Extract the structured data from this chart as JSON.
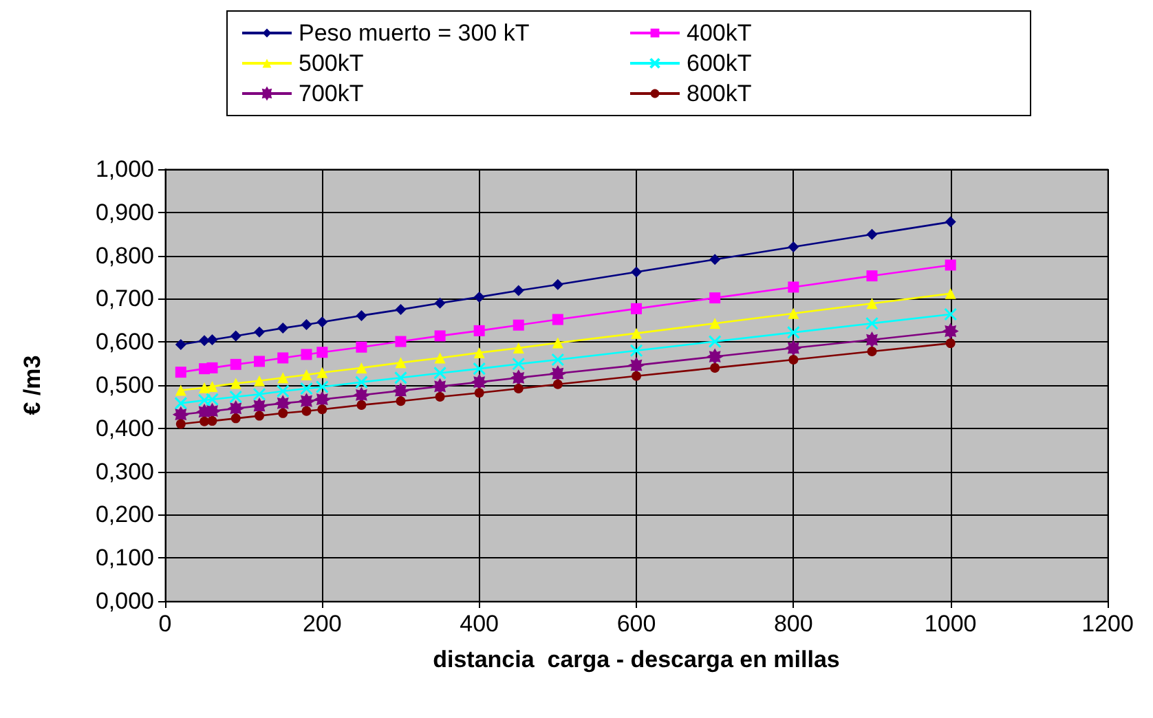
{
  "chart_data": {
    "type": "line",
    "xlabel": "distancia  carga - descarga en millas",
    "ylabel": "€ /m3",
    "x": [
      20,
      50,
      60,
      90,
      120,
      150,
      180,
      200,
      250,
      300,
      350,
      400,
      450,
      500,
      600,
      700,
      800,
      900,
      1000
    ],
    "series": [
      {
        "name": "Peso muerto = 300 kT",
        "color": "#000080",
        "marker": "diamond",
        "values": [
          0.594,
          0.603,
          0.605,
          0.614,
          0.623,
          0.632,
          0.64,
          0.646,
          0.661,
          0.675,
          0.69,
          0.704,
          0.719,
          0.733,
          0.762,
          0.791,
          0.82,
          0.849,
          0.878
        ]
      },
      {
        "name": "400kT",
        "color": "#ff00ff",
        "marker": "square",
        "values": [
          0.53,
          0.538,
          0.54,
          0.548,
          0.555,
          0.563,
          0.571,
          0.576,
          0.588,
          0.601,
          0.614,
          0.626,
          0.639,
          0.652,
          0.677,
          0.702,
          0.727,
          0.753,
          0.778
        ]
      },
      {
        "name": "500kT",
        "color": "#ffff00",
        "marker": "triangle",
        "values": [
          0.488,
          0.494,
          0.497,
          0.504,
          0.51,
          0.517,
          0.524,
          0.529,
          0.54,
          0.552,
          0.563,
          0.575,
          0.586,
          0.598,
          0.62,
          0.643,
          0.666,
          0.689,
          0.712
        ]
      },
      {
        "name": "600kT",
        "color": "#00ffff",
        "marker": "cross",
        "values": [
          0.458,
          0.465,
          0.467,
          0.473,
          0.479,
          0.486,
          0.492,
          0.496,
          0.507,
          0.517,
          0.528,
          0.538,
          0.549,
          0.559,
          0.58,
          0.601,
          0.622,
          0.643,
          0.664
        ]
      },
      {
        "name": "700kT",
        "color": "#800080",
        "marker": "star",
        "values": [
          0.432,
          0.438,
          0.44,
          0.446,
          0.452,
          0.458,
          0.463,
          0.467,
          0.477,
          0.487,
          0.497,
          0.507,
          0.517,
          0.527,
          0.546,
          0.566,
          0.586,
          0.605,
          0.625
        ]
      },
      {
        "name": "800kT",
        "color": "#800000",
        "marker": "circle",
        "values": [
          0.41,
          0.416,
          0.417,
          0.423,
          0.429,
          0.435,
          0.44,
          0.444,
          0.454,
          0.463,
          0.473,
          0.482,
          0.492,
          0.502,
          0.521,
          0.54,
          0.559,
          0.578,
          0.597
        ]
      }
    ],
    "xlim": [
      0,
      1200
    ],
    "xticks": [
      0,
      200,
      400,
      600,
      800,
      1000,
      1200
    ],
    "ylim": [
      0,
      1
    ],
    "yticks": [
      {
        "value": 0,
        "label": "0,000"
      },
      {
        "value": 0.1,
        "label": "0,100"
      },
      {
        "value": 0.2,
        "label": "0,200"
      },
      {
        "value": 0.3,
        "label": "0,300"
      },
      {
        "value": 0.4,
        "label": "0,400"
      },
      {
        "value": 0.5,
        "label": "0,500"
      },
      {
        "value": 0.6,
        "label": "0,600"
      },
      {
        "value": 0.7,
        "label": "0,700"
      },
      {
        "value": 0.8,
        "label": "0,800"
      },
      {
        "value": 0.9,
        "label": "0,900"
      },
      {
        "value": 1,
        "label": "1,000"
      }
    ],
    "grid": true,
    "legend": "top"
  }
}
